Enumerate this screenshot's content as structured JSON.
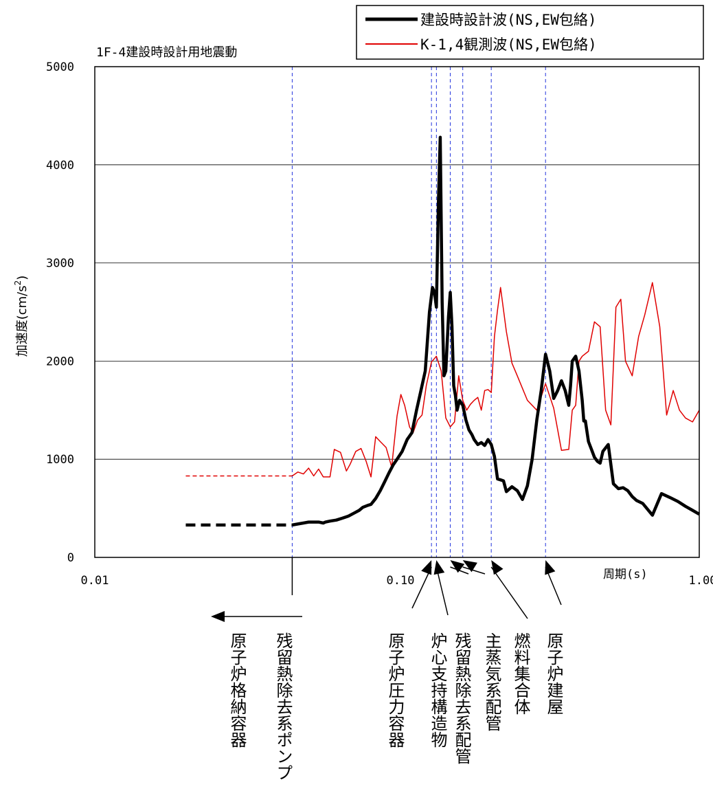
{
  "chart_data": {
    "type": "line",
    "title": "1F-4建設時設計用地震動",
    "xlabel": "周期(s)",
    "ylabel": {
      "main": "加速度",
      "open": "(",
      "unit": "cm/s",
      "sup": "2",
      "close": ")"
    },
    "x_scale": "log",
    "xlim": [
      0.01,
      1.0
    ],
    "ylim": [
      0,
      5000
    ],
    "x_ticks": [
      {
        "value": 0.01,
        "label": "0.01"
      },
      {
        "value": 0.1,
        "label": "0.10"
      },
      {
        "value": 1.0,
        "label": "1.00"
      }
    ],
    "y_ticks": [
      {
        "value": 0,
        "label": "0"
      },
      {
        "value": 1000,
        "label": "1000"
      },
      {
        "value": 2000,
        "label": "2000"
      },
      {
        "value": 3000,
        "label": "3000"
      },
      {
        "value": 4000,
        "label": "4000"
      },
      {
        "value": 5000,
        "label": "5000"
      }
    ],
    "grid": "horizontal",
    "legend_position": "top-right",
    "series": [
      {
        "name": "建設時設計波(NS,EW包絡)",
        "color": "#000000",
        "dashed_extension": {
          "x": [
            0.02,
            0.045
          ],
          "y": [
            330,
            330
          ]
        },
        "x": [
          0.045,
          0.047,
          0.049,
          0.051,
          0.055,
          0.057,
          0.058,
          0.06,
          0.063,
          0.066,
          0.069,
          0.072,
          0.075,
          0.077,
          0.08,
          0.082,
          0.085,
          0.088,
          0.091,
          0.094,
          0.097,
          0.1,
          0.104,
          0.108,
          0.112,
          0.116,
          0.12,
          0.124,
          0.128,
          0.131,
          0.133,
          0.135,
          0.137,
          0.139,
          0.141,
          0.143,
          0.145,
          0.148,
          0.15,
          0.152,
          0.154,
          0.156,
          0.158,
          0.161,
          0.165,
          0.169,
          0.173,
          0.177,
          0.18,
          0.185,
          0.19,
          0.195,
          0.2,
          0.205,
          0.21,
          0.215,
          0.22,
          0.225,
          0.23,
          0.24,
          0.25,
          0.26,
          0.27,
          0.28,
          0.29,
          0.3,
          0.31,
          0.32,
          0.33,
          0.34,
          0.35,
          0.36,
          0.37,
          0.375,
          0.38,
          0.39,
          0.4,
          0.41,
          0.415,
          0.42,
          0.43,
          0.44,
          0.45,
          0.46,
          0.47,
          0.48,
          0.5,
          0.52,
          0.54,
          0.56,
          0.58,
          0.6,
          0.62,
          0.65,
          0.7,
          0.75,
          0.8,
          0.85,
          0.9,
          0.95,
          1.0
        ],
        "y": [
          330,
          340,
          350,
          360,
          360,
          350,
          360,
          370,
          380,
          400,
          420,
          450,
          480,
          510,
          530,
          540,
          600,
          680,
          770,
          860,
          940,
          1000,
          1080,
          1200,
          1270,
          1500,
          1700,
          1900,
          2500,
          2750,
          2700,
          2550,
          3600,
          4280,
          2600,
          1850,
          1900,
          2450,
          2700,
          2350,
          1750,
          1650,
          1500,
          1600,
          1550,
          1400,
          1300,
          1250,
          1200,
          1150,
          1170,
          1140,
          1200,
          1150,
          1030,
          800,
          790,
          780,
          670,
          720,
          680,
          590,
          730,
          1000,
          1400,
          1700,
          2070,
          1900,
          1620,
          1700,
          1800,
          1700,
          1550,
          1750,
          2000,
          2050,
          1900,
          1600,
          1390,
          1390,
          1180,
          1100,
          1020,
          980,
          960,
          1080,
          1150,
          750,
          700,
          710,
          680,
          620,
          580,
          550,
          430,
          650,
          610,
          570,
          520,
          480,
          440
        ]
      },
      {
        "name": "K-1,4観測波(NS,EW包絡)",
        "color": "#e00000",
        "dashed_extension": {
          "x": [
            0.02,
            0.045
          ],
          "y": [
            830,
            830
          ]
        },
        "x": [
          0.045,
          0.047,
          0.049,
          0.051,
          0.053,
          0.055,
          0.057,
          0.06,
          0.062,
          0.065,
          0.068,
          0.07,
          0.073,
          0.076,
          0.079,
          0.082,
          0.085,
          0.088,
          0.092,
          0.096,
          0.1,
          0.103,
          0.106,
          0.11,
          0.113,
          0.117,
          0.121,
          0.125,
          0.13,
          0.135,
          0.14,
          0.145,
          0.15,
          0.155,
          0.16,
          0.165,
          0.17,
          0.175,
          0.18,
          0.185,
          0.19,
          0.195,
          0.2,
          0.205,
          0.21,
          0.215,
          0.22,
          0.23,
          0.24,
          0.25,
          0.27,
          0.29,
          0.31,
          0.33,
          0.35,
          0.37,
          0.38,
          0.39,
          0.4,
          0.41,
          0.43,
          0.45,
          0.47,
          0.49,
          0.51,
          0.53,
          0.55,
          0.57,
          0.6,
          0.63,
          0.66,
          0.7,
          0.74,
          0.78,
          0.82,
          0.86,
          0.9,
          0.95,
          1.0
        ],
        "y": [
          830,
          870,
          850,
          910,
          830,
          900,
          820,
          820,
          1100,
          1070,
          880,
          950,
          1080,
          1110,
          980,
          820,
          1230,
          1180,
          1120,
          920,
          1440,
          1660,
          1550,
          1330,
          1270,
          1400,
          1450,
          1750,
          1990,
          2050,
          1900,
          1420,
          1330,
          1380,
          1850,
          1600,
          1500,
          1560,
          1600,
          1630,
          1500,
          1700,
          1710,
          1680,
          2250,
          2520,
          2750,
          2300,
          1980,
          1850,
          1600,
          1500,
          1770,
          1520,
          1090,
          1100,
          1500,
          1550,
          2000,
          2050,
          2100,
          2400,
          2350,
          1500,
          1350,
          2550,
          2630,
          2000,
          1850,
          2250,
          2470,
          2800,
          2350,
          1450,
          1700,
          1500,
          1420,
          1380,
          1500
        ]
      }
    ],
    "components": [
      {
        "x": 0.045,
        "label": "残留熱除去系ポンプ"
      },
      {
        "x": 0.13,
        "label": "原子炉圧力容器"
      },
      {
        "x": 0.135,
        "label": "炉心支持構造物"
      },
      {
        "x": 0.15,
        "label": "残留熱除去系配管"
      },
      {
        "x": 0.165,
        "label": "主蒸気系配管"
      },
      {
        "x": 0.205,
        "label": "燃料集合体"
      },
      {
        "x": 0.31,
        "label": "原子炉建屋"
      }
    ],
    "left_arrow_label": "原子炉格納容器"
  }
}
